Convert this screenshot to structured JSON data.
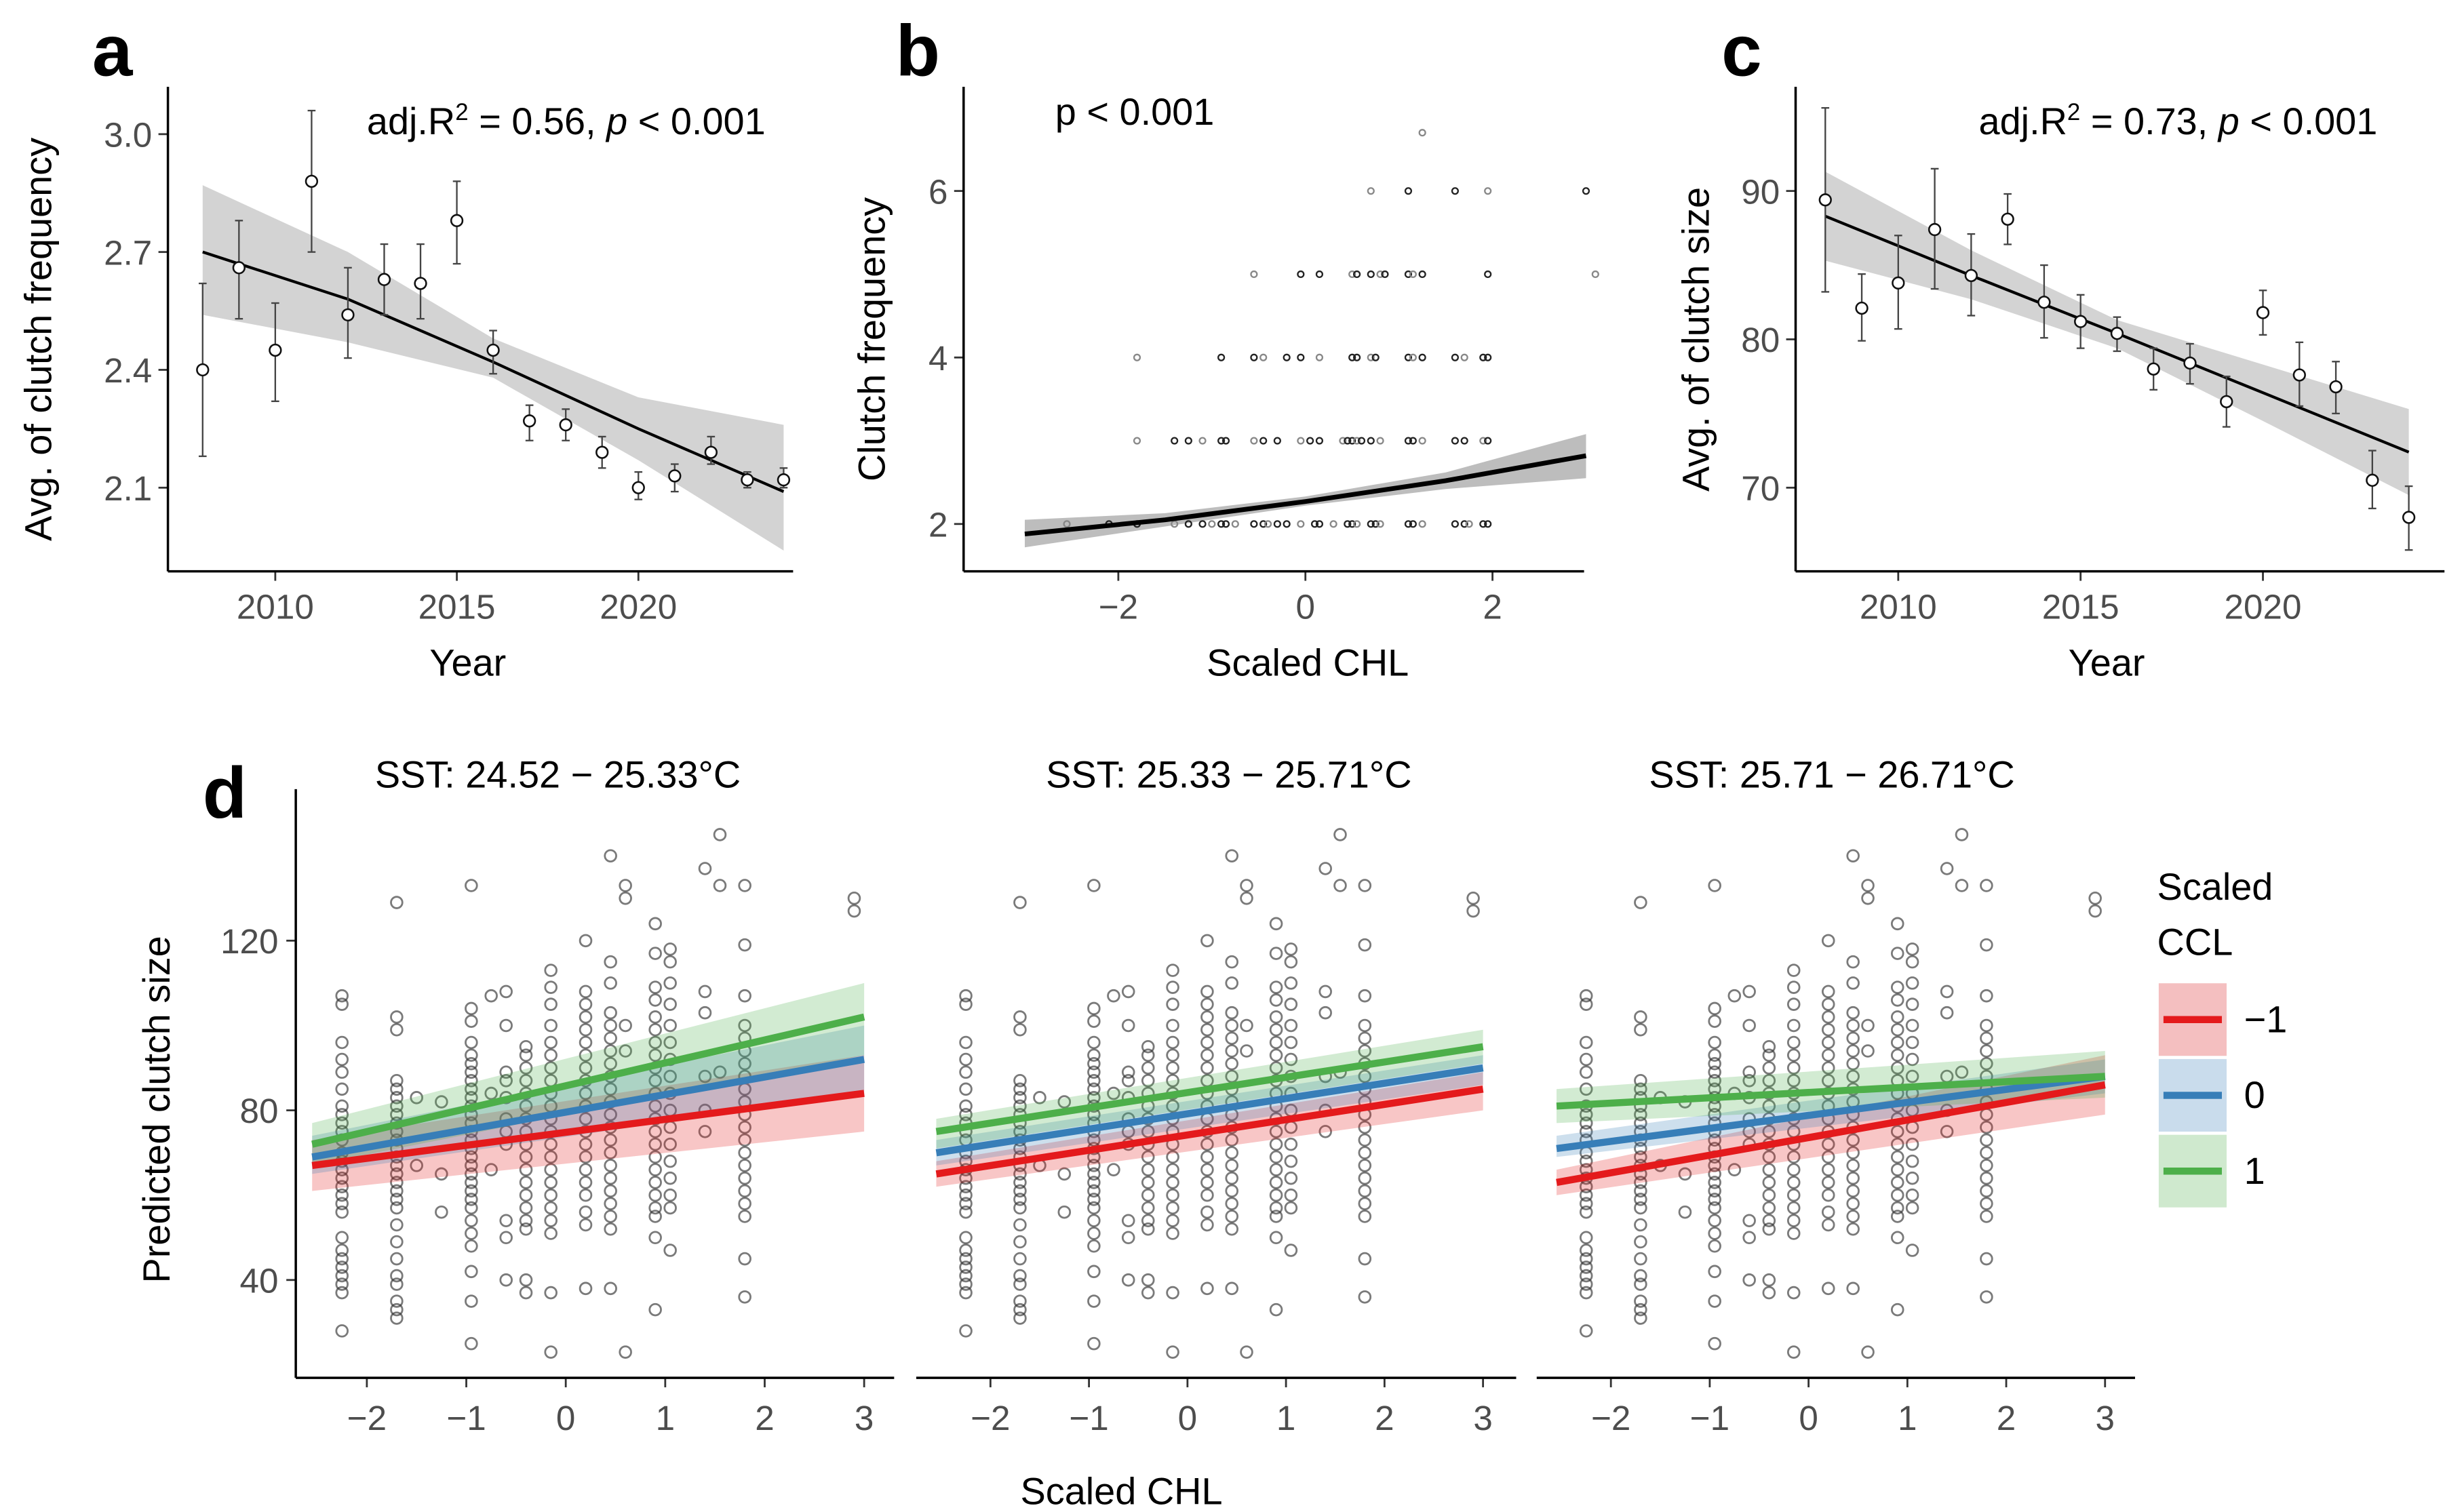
{
  "chart_data": [
    {
      "panel": "a",
      "type": "scatter",
      "annotation": {
        "prefix": "adj.R",
        "sup": "2",
        "mid": " = 0.56, ",
        "p": "p",
        "suffix": " < 0.001"
      },
      "xlabel": "Year",
      "ylabel": "Avg. of clutch frequency",
      "xlim": [
        2007.3,
        2024.5
      ],
      "ylim": [
        1.88,
        3.12
      ],
      "xticks": [
        2010,
        2015,
        2020
      ],
      "yticks": [
        2.1,
        2.4,
        2.7,
        3.0
      ],
      "ytick_labels": [
        "2.1",
        "2.4",
        "2.7",
        "3.0"
      ],
      "points": [
        {
          "x": 2008,
          "y": 2.4,
          "lo": 2.18,
          "hi": 2.62
        },
        {
          "x": 2009,
          "y": 2.66,
          "lo": 2.53,
          "hi": 2.78
        },
        {
          "x": 2010,
          "y": 2.45,
          "lo": 2.32,
          "hi": 2.57
        },
        {
          "x": 2011,
          "y": 2.88,
          "lo": 2.7,
          "hi": 3.06
        },
        {
          "x": 2012,
          "y": 2.54,
          "lo": 2.43,
          "hi": 2.66
        },
        {
          "x": 2013,
          "y": 2.63,
          "lo": 2.54,
          "hi": 2.72
        },
        {
          "x": 2014,
          "y": 2.62,
          "lo": 2.53,
          "hi": 2.72
        },
        {
          "x": 2015,
          "y": 2.78,
          "lo": 2.67,
          "hi": 2.88
        },
        {
          "x": 2016,
          "y": 2.45,
          "lo": 2.39,
          "hi": 2.5
        },
        {
          "x": 2017,
          "y": 2.27,
          "lo": 2.22,
          "hi": 2.31
        },
        {
          "x": 2018,
          "y": 2.26,
          "lo": 2.22,
          "hi": 2.3
        },
        {
          "x": 2019,
          "y": 2.19,
          "lo": 2.15,
          "hi": 2.23
        },
        {
          "x": 2020,
          "y": 2.1,
          "lo": 2.07,
          "hi": 2.14
        },
        {
          "x": 2021,
          "y": 2.13,
          "lo": 2.09,
          "hi": 2.16
        },
        {
          "x": 2022,
          "y": 2.19,
          "lo": 2.16,
          "hi": 2.23
        },
        {
          "x": 2023,
          "y": 2.12,
          "lo": 2.1,
          "hi": 2.14
        },
        {
          "x": 2024,
          "y": 2.12,
          "lo": 2.1,
          "hi": 2.15
        }
      ],
      "fit": {
        "x": [
          2008,
          2012,
          2016,
          2020,
          2024
        ],
        "y": [
          2.7,
          2.58,
          2.42,
          2.25,
          2.09
        ],
        "lo": [
          2.54,
          2.47,
          2.38,
          2.17,
          1.94
        ],
        "hi": [
          2.87,
          2.7,
          2.48,
          2.33,
          2.26
        ]
      }
    },
    {
      "panel": "b",
      "type": "scatter",
      "annotation": "p < 0.001",
      "xlabel": "Scaled CHL",
      "ylabel": "Clutch frequency",
      "xlim": [
        -3.5,
        3.35
      ],
      "ylim": [
        1.4,
        7.2
      ],
      "xticks": [
        -2,
        0,
        2
      ],
      "xtick_labels": [
        "−2",
        "0",
        "2"
      ],
      "yticks": [
        2,
        4,
        6
      ],
      "points_x_by_level": {
        "2": [
          -2.55,
          -2.1,
          -1.8,
          -1.4,
          -1.25,
          -1.1,
          -1.0,
          -0.9,
          -0.85,
          -0.75,
          -0.55,
          -0.45,
          -0.4,
          -0.3,
          -0.2,
          -0.05,
          0.1,
          0.15,
          0.3,
          0.45,
          0.5,
          0.55,
          0.7,
          0.75,
          0.8,
          1.1,
          1.15,
          1.25,
          1.6,
          1.7,
          1.75,
          1.9,
          1.95
        ],
        "3": [
          -1.8,
          -1.4,
          -1.25,
          -1.1,
          -0.9,
          -0.85,
          -0.55,
          -0.45,
          -0.3,
          -0.05,
          0.05,
          0.15,
          0.4,
          0.45,
          0.5,
          0.55,
          0.6,
          0.7,
          0.8,
          1.1,
          1.15,
          1.25,
          1.6,
          1.7,
          1.9,
          1.95
        ],
        "4": [
          -1.8,
          -0.9,
          -0.55,
          -0.45,
          -0.2,
          -0.05,
          0.15,
          0.5,
          0.55,
          0.7,
          0.75,
          1.1,
          1.15,
          1.25,
          1.6,
          1.7,
          1.9,
          1.95
        ],
        "5": [
          -0.55,
          -0.05,
          0.15,
          0.5,
          0.55,
          0.7,
          0.8,
          0.85,
          1.1,
          1.15,
          1.25,
          1.95,
          3.1
        ],
        "6": [
          0.7,
          1.1,
          1.6,
          1.95,
          3.0
        ],
        "6.7": [
          1.25
        ]
      },
      "fit": {
        "x": [
          -3.0,
          -1.5,
          0,
          1.5,
          3.0
        ],
        "y": [
          1.88,
          2.05,
          2.27,
          2.52,
          2.82
        ],
        "lo": [
          1.72,
          1.97,
          2.22,
          2.42,
          2.55
        ],
        "hi": [
          2.05,
          2.13,
          2.33,
          2.62,
          3.08
        ]
      }
    },
    {
      "panel": "c",
      "type": "scatter",
      "annotation": {
        "prefix": "adj.R",
        "sup": "2",
        "mid": " = 0.73, ",
        "p": "p",
        "suffix": " < 0.001"
      },
      "xlabel": "Year",
      "ylabel": "Avg. of clutch size",
      "xlim": [
        2007.3,
        2025.2
      ],
      "ylim": [
        64,
        96.5
      ],
      "xticks": [
        2010,
        2015,
        2020
      ],
      "yticks": [
        70,
        80,
        90
      ],
      "points": [
        {
          "x": 2008,
          "y": 89.4,
          "lo": 83.2,
          "hi": 95.6
        },
        {
          "x": 2009,
          "y": 82.1,
          "lo": 79.9,
          "hi": 84.4
        },
        {
          "x": 2010,
          "y": 83.8,
          "lo": 80.7,
          "hi": 87.0
        },
        {
          "x": 2011,
          "y": 87.4,
          "lo": 83.4,
          "hi": 91.5
        },
        {
          "x": 2012,
          "y": 84.3,
          "lo": 81.6,
          "hi": 87.1
        },
        {
          "x": 2013,
          "y": 88.1,
          "lo": 86.4,
          "hi": 89.8
        },
        {
          "x": 2014,
          "y": 82.5,
          "lo": 80.1,
          "hi": 85.0
        },
        {
          "x": 2015,
          "y": 81.2,
          "lo": 79.4,
          "hi": 83.0
        },
        {
          "x": 2016,
          "y": 80.4,
          "lo": 79.2,
          "hi": 81.5
        },
        {
          "x": 2017,
          "y": 78.0,
          "lo": 76.6,
          "hi": 79.4
        },
        {
          "x": 2018,
          "y": 78.4,
          "lo": 77.0,
          "hi": 79.7
        },
        {
          "x": 2019,
          "y": 75.8,
          "lo": 74.1,
          "hi": 77.5
        },
        {
          "x": 2020,
          "y": 81.8,
          "lo": 80.3,
          "hi": 83.3
        },
        {
          "x": 2021,
          "y": 77.6,
          "lo": 75.5,
          "hi": 79.8
        },
        {
          "x": 2022,
          "y": 76.8,
          "lo": 75.0,
          "hi": 78.5
        },
        {
          "x": 2023,
          "y": 70.5,
          "lo": 68.6,
          "hi": 72.5
        },
        {
          "x": 2024,
          "y": 68.0,
          "lo": 65.8,
          "hi": 70.1
        }
      ],
      "fit": {
        "x": [
          2008,
          2012,
          2016,
          2020,
          2024
        ],
        "y": [
          88.3,
          84.3,
          80.4,
          76.4,
          72.4
        ],
        "lo": [
          85.3,
          82.7,
          79.4,
          74.5,
          69.5
        ],
        "hi": [
          91.3,
          86.0,
          81.3,
          78.3,
          75.3
        ]
      }
    },
    {
      "panel": "d",
      "type": "scatter",
      "xlabel": "Scaled CHL",
      "ylabel": "Predicted clutch size",
      "xlim": [
        -2.7,
        3.3
      ],
      "ylim": [
        18,
        155
      ],
      "xticks": [
        -2,
        -1,
        0,
        1,
        2,
        3
      ],
      "xtick_labels": [
        "−2",
        "−1",
        "0",
        "1",
        "2",
        "3"
      ],
      "yticks": [
        40,
        80,
        120
      ],
      "legend": {
        "title": [
          "Scaled",
          "CCL"
        ],
        "position": "right",
        "entries": [
          {
            "label": "−1",
            "color": "#e41a1c",
            "fill": "#f4bfc0"
          },
          {
            "label": "0",
            "color": "#377eb8",
            "fill": "#c9dcec"
          },
          {
            "label": "1",
            "color": "#4daf4a",
            "fill": "#cfe9ce"
          }
        ]
      },
      "facets": [
        {
          "title": "SST: 24.52 − 25.33°C",
          "lines": [
            {
              "ccl": "-1",
              "x": [
                -2.55,
                3.0
              ],
              "y": [
                67,
                84
              ],
              "lo": [
                61,
                75
              ],
              "hi": [
                73,
                93
              ]
            },
            {
              "ccl": "0",
              "x": [
                -2.55,
                3.0
              ],
              "y": [
                69,
                92
              ],
              "lo": [
                65,
                84
              ],
              "hi": [
                74,
                100
              ]
            },
            {
              "ccl": "1",
              "x": [
                -2.55,
                3.0
              ],
              "y": [
                72,
                102
              ],
              "lo": [
                67,
                93
              ],
              "hi": [
                77,
                110
              ]
            }
          ]
        },
        {
          "title": "SST: 25.33 − 25.71°C",
          "lines": [
            {
              "ccl": "-1",
              "x": [
                -2.55,
                3.0
              ],
              "y": [
                65,
                85
              ],
              "lo": [
                62,
                80
              ],
              "hi": [
                68,
                89
              ]
            },
            {
              "ccl": "0",
              "x": [
                -2.55,
                3.0
              ],
              "y": [
                70,
                90
              ],
              "lo": [
                67,
                86
              ],
              "hi": [
                73,
                93
              ]
            },
            {
              "ccl": "1",
              "x": [
                -2.55,
                3.0
              ],
              "y": [
                75,
                95
              ],
              "lo": [
                71,
                91
              ],
              "hi": [
                78,
                99
              ]
            }
          ]
        },
        {
          "title": "SST: 25.71 − 26.71°C",
          "lines": [
            {
              "ccl": "-1",
              "x": [
                -2.55,
                3.0
              ],
              "y": [
                63,
                86
              ],
              "lo": [
                60,
                79
              ],
              "hi": [
                66,
                93
              ]
            },
            {
              "ccl": "0",
              "x": [
                -2.55,
                3.0
              ],
              "y": [
                71,
                88
              ],
              "lo": [
                69,
                84
              ],
              "hi": [
                74,
                92
              ]
            },
            {
              "ccl": "1",
              "x": [
                -2.55,
                3.0
              ],
              "y": [
                81,
                88
              ],
              "lo": [
                77,
                83
              ],
              "hi": [
                85,
                94
              ]
            }
          ]
        }
      ],
      "observed_columns": [
        {
          "x": -2.25,
          "y": [
            107,
            105,
            96,
            92,
            89,
            85,
            81,
            79,
            77,
            75,
            73,
            70,
            68,
            66,
            64,
            62,
            60,
            58,
            56,
            50,
            47,
            45,
            43,
            41,
            39,
            37,
            28
          ]
        },
        {
          "x": -1.7,
          "y": [
            129,
            102,
            99,
            87,
            85,
            83,
            81,
            79,
            77,
            75,
            73,
            71,
            69,
            67,
            65,
            63,
            61,
            59,
            57,
            53,
            49,
            45,
            41,
            39,
            35,
            33,
            31
          ]
        },
        {
          "x": -1.5,
          "y": [
            83,
            67
          ]
        },
        {
          "x": -1.25,
          "y": [
            82,
            65,
            56
          ]
        },
        {
          "x": -0.95,
          "y": [
            133,
            104,
            101,
            96,
            93,
            91,
            89,
            87,
            85,
            83,
            81,
            79,
            77,
            75,
            73,
            71,
            69,
            67,
            65,
            63,
            61,
            59,
            57,
            54,
            51,
            48,
            42,
            35,
            25
          ]
        },
        {
          "x": -0.75,
          "y": [
            107,
            84,
            66
          ]
        },
        {
          "x": -0.6,
          "y": [
            108,
            100,
            89,
            87,
            83,
            78,
            75,
            72,
            54,
            50,
            40
          ]
        },
        {
          "x": -0.4,
          "y": [
            95,
            93,
            90,
            87,
            84,
            81,
            78,
            75,
            72,
            69,
            66,
            63,
            60,
            57,
            54,
            52,
            40,
            37
          ]
        },
        {
          "x": -0.15,
          "y": [
            113,
            109,
            105,
            100,
            96,
            93,
            90,
            87,
            84,
            81,
            78,
            75,
            72,
            69,
            66,
            63,
            60,
            57,
            54,
            51,
            37,
            23
          ]
        },
        {
          "x": 0.2,
          "y": [
            120,
            108,
            105,
            102,
            99,
            96,
            93,
            90,
            87,
            84,
            81,
            78,
            75,
            72,
            69,
            66,
            63,
            60,
            56,
            53,
            38
          ]
        },
        {
          "x": 0.45,
          "y": [
            140,
            115,
            110,
            103,
            100,
            97,
            94,
            91,
            88,
            85,
            82,
            79,
            76,
            73,
            70,
            67,
            64,
            61,
            58,
            55,
            52,
            38
          ]
        },
        {
          "x": 0.6,
          "y": [
            133,
            130,
            100,
            94,
            23
          ]
        },
        {
          "x": 0.9,
          "y": [
            124,
            117,
            109,
            106,
            102,
            99,
            96,
            93,
            90,
            87,
            84,
            81,
            78,
            75,
            72,
            69,
            66,
            63,
            60,
            57,
            55,
            50,
            33
          ]
        },
        {
          "x": 1.05,
          "y": [
            118,
            115,
            110,
            105,
            100,
            96,
            92,
            88,
            84,
            80,
            76,
            72,
            68,
            64,
            60,
            57,
            47
          ]
        },
        {
          "x": 1.4,
          "y": [
            137,
            108,
            103,
            88,
            80,
            75
          ]
        },
        {
          "x": 1.55,
          "y": [
            145,
            133,
            89
          ]
        },
        {
          "x": 1.8,
          "y": [
            133,
            119,
            107,
            100,
            97,
            94,
            91,
            88,
            85,
            82,
            79,
            76,
            73,
            70,
            67,
            64,
            61,
            58,
            55,
            45,
            36
          ]
        },
        {
          "x": 2.9,
          "y": [
            127,
            130
          ]
        }
      ]
    }
  ],
  "panel_labels": [
    "a",
    "b",
    "c",
    "d"
  ],
  "styles": {
    "ribbon_gray": "#d3d3d3",
    "line_black": "#000000",
    "point_stroke": "#3a3a3a"
  }
}
